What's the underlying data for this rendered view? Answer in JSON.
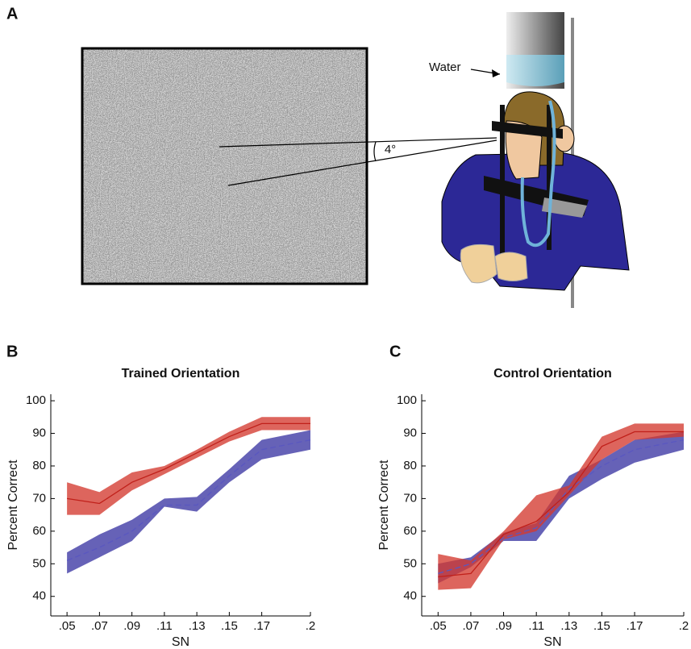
{
  "figure": {
    "panel_a": {
      "label": "A",
      "water_label": "Water",
      "angle_label": "4°"
    }
  },
  "chart_data": [
    {
      "type": "line",
      "label": "B",
      "title": "Trained Orientation",
      "xlabel": "SN",
      "ylabel": "Percent Correct",
      "x": [
        0.05,
        0.07,
        0.09,
        0.11,
        0.13,
        0.15,
        0.17,
        0.2
      ],
      "xlim": [
        0.04,
        0.2
      ],
      "xticks": [
        {
          "value": 0.05,
          "label": ".05"
        },
        {
          "value": 0.07,
          "label": ".07"
        },
        {
          "value": 0.09,
          "label": ".09"
        },
        {
          "value": 0.11,
          "label": ".11"
        },
        {
          "value": 0.13,
          "label": ".13"
        },
        {
          "value": 0.15,
          "label": ".15"
        },
        {
          "value": 0.17,
          "label": ".17"
        },
        {
          "value": 0.2,
          "label": ".2"
        }
      ],
      "ylim": [
        34,
        102
      ],
      "yticks": [
        40,
        50,
        60,
        70,
        80,
        90,
        100
      ],
      "series": [
        {
          "color": "#d43a2f",
          "line_style": "solid",
          "values": [
            70,
            68.5,
            75,
            79,
            84,
            89,
            93,
            93
          ],
          "upper": [
            75,
            72,
            78,
            80,
            85,
            90.5,
            95,
            95
          ],
          "lower": [
            65,
            65,
            72.5,
            77.5,
            82.5,
            87.5,
            91,
            91
          ]
        },
        {
          "color": "#3b36a3",
          "line_style": "dashed",
          "values": [
            51,
            55,
            60,
            68,
            68,
            77,
            85,
            88
          ],
          "upper": [
            53.5,
            59,
            63.5,
            70,
            70.5,
            79,
            88,
            91
          ],
          "lower": [
            47,
            52,
            57,
            67.5,
            66,
            75,
            82,
            85
          ]
        }
      ]
    },
    {
      "type": "line",
      "label": "C",
      "title": "Control Orientation",
      "xlabel": "SN",
      "ylabel": "Percent Correct",
      "x": [
        0.05,
        0.07,
        0.09,
        0.11,
        0.13,
        0.15,
        0.17,
        0.2
      ],
      "xlim": [
        0.04,
        0.2
      ],
      "xticks": [
        {
          "value": 0.05,
          "label": ".05"
        },
        {
          "value": 0.07,
          "label": ".07"
        },
        {
          "value": 0.09,
          "label": ".09"
        },
        {
          "value": 0.11,
          "label": ".11"
        },
        {
          "value": 0.13,
          "label": ".13"
        },
        {
          "value": 0.15,
          "label": ".15"
        },
        {
          "value": 0.17,
          "label": ".17"
        },
        {
          "value": 0.2,
          "label": ".2"
        }
      ],
      "ylim": [
        34,
        102
      ],
      "yticks": [
        40,
        50,
        60,
        70,
        80,
        90,
        100
      ],
      "series": [
        {
          "color": "#3b36a3",
          "line_style": "dashed",
          "values": [
            47,
            50,
            58,
            61,
            73,
            80,
            85,
            88
          ],
          "upper": [
            50,
            52,
            59.5,
            62.5,
            77,
            82,
            88,
            90.5
          ],
          "lower": [
            44,
            49,
            57,
            57,
            70,
            76,
            81,
            85
          ]
        },
        {
          "color": "#d43a2f",
          "line_style": "solid",
          "values": [
            46,
            47,
            59,
            63,
            72,
            86,
            90.5,
            90.5
          ],
          "upper": [
            53,
            51,
            60,
            71,
            74,
            89,
            93,
            93
          ],
          "lower": [
            42,
            42.5,
            57.5,
            60,
            71,
            82,
            88,
            89
          ]
        }
      ]
    }
  ]
}
